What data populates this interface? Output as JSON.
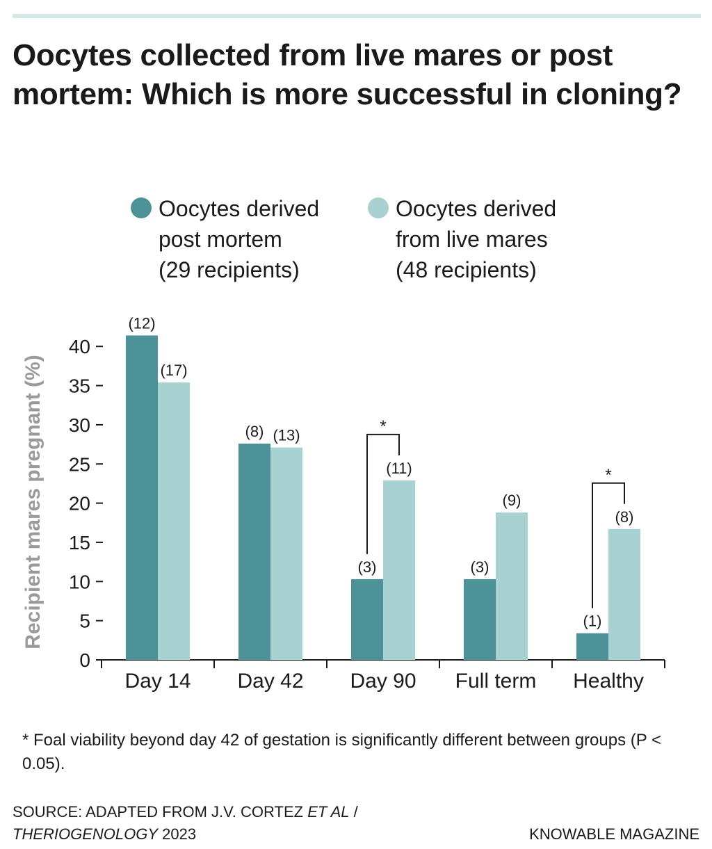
{
  "title": "Oocytes collected from live mares or post mortem: Which is more successful in cloning?",
  "legend": [
    {
      "lines": [
        "Oocytes derived",
        "post mortem",
        "(29 recipients)"
      ],
      "color": "#4d9199"
    },
    {
      "lines": [
        "Oocytes derived",
        "from live mares",
        "(48 recipients)"
      ],
      "color": "#a8d1d1"
    }
  ],
  "chart_data": {
    "type": "bar",
    "ylabel": "Recipient mares pregnant (%)",
    "xlabel": "",
    "ylim": [
      0,
      40
    ],
    "yticks": [
      0,
      5,
      10,
      15,
      20,
      25,
      30,
      35,
      40
    ],
    "categories": [
      "Day 14",
      "Day 42",
      "Day 90",
      "Full term",
      "Healthy"
    ],
    "series": [
      {
        "name": "Oocytes derived post mortem (29 recipients)",
        "color": "#4d9199",
        "values": [
          41.4,
          27.6,
          10.3,
          10.3,
          3.4
        ],
        "labels": [
          "(12)",
          "(8)",
          "(3)",
          "(3)",
          "(1)"
        ]
      },
      {
        "name": "Oocytes derived from live mares (48 recipients)",
        "color": "#a8d1d1",
        "values": [
          35.4,
          27.1,
          22.9,
          18.8,
          16.7
        ],
        "labels": [
          "(17)",
          "(13)",
          "(11)",
          "(9)",
          "(8)"
        ]
      }
    ],
    "significance": [
      {
        "category": "Day 90",
        "marker": "*"
      },
      {
        "category": "Healthy",
        "marker": "*"
      }
    ],
    "grid": false
  },
  "footnote": "* Foal viability beyond day 42 of gestation is significantly different between groups (P < 0.05).",
  "source": {
    "prefix": "SOURCE: ADAPTED FROM J.V. CORTEZ ",
    "et_al": "ET AL",
    "slash": " /",
    "journal": "THERIOGENOLOGY",
    "year": " 2023"
  },
  "credit": "KNOWABLE MAGAZINE"
}
